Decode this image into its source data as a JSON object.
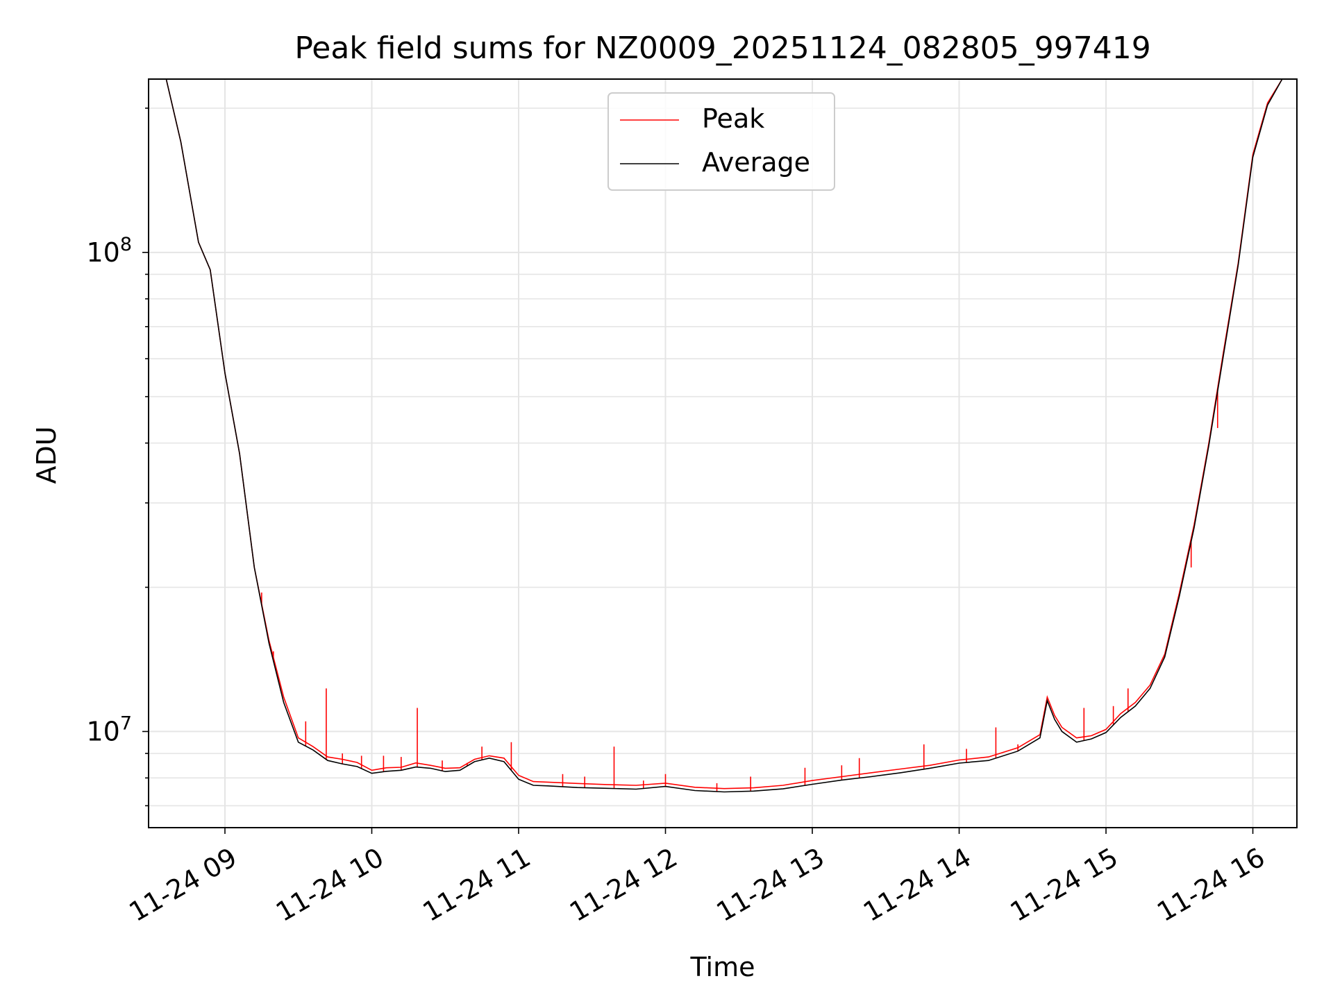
{
  "chart_data": {
    "type": "line",
    "title": "Peak field sums for NZ0009_20251124_082805_997419",
    "xlabel": "Time",
    "ylabel": "ADU",
    "yscale": "log",
    "ylim": [
      6300000,
      230000000
    ],
    "xlim_hours": [
      8.48,
      16.3
    ],
    "grid": true,
    "legend_position": "upper center",
    "x_tick_values": [
      9,
      10,
      11,
      12,
      13,
      14,
      15,
      16
    ],
    "x_tick_labels": [
      "11-24 09",
      "11-24 10",
      "11-24 11",
      "11-24 12",
      "11-24 13",
      "11-24 14",
      "11-24 15",
      "11-24 16"
    ],
    "y_major_ticks": [
      {
        "value": 10000000,
        "base": "10",
        "exp": "7"
      },
      {
        "value": 100000000,
        "base": "10",
        "exp": "8"
      }
    ],
    "series": [
      {
        "name": "Peak",
        "color": "#ff0000",
        "x": [
          8.48,
          8.6,
          8.7,
          8.82,
          8.9,
          9.0,
          9.1,
          9.2,
          9.3,
          9.4,
          9.5,
          9.6,
          9.7,
          9.8,
          9.9,
          10.0,
          10.1,
          10.2,
          10.3,
          10.4,
          10.5,
          10.6,
          10.7,
          10.8,
          10.9,
          11.0,
          11.1,
          11.2,
          11.4,
          11.6,
          11.8,
          12.0,
          12.2,
          12.4,
          12.6,
          12.8,
          13.0,
          13.2,
          13.4,
          13.6,
          13.8,
          14.0,
          14.2,
          14.4,
          14.55,
          14.6,
          14.65,
          14.7,
          14.8,
          14.9,
          15.0,
          15.1,
          15.2,
          15.3,
          15.4,
          15.5,
          15.6,
          15.7,
          15.8,
          15.9,
          16.0,
          16.1,
          16.2,
          16.3
        ],
        "y": [
          230000000,
          230000000,
          170000000,
          105000000,
          92000000,
          56000000,
          38000000,
          22000000,
          15500000,
          11800000,
          9700000,
          9300000,
          8850000,
          8750000,
          8620000,
          8300000,
          8400000,
          8420000,
          8600000,
          8500000,
          8380000,
          8400000,
          8750000,
          8900000,
          8800000,
          8100000,
          7860000,
          7840000,
          7790000,
          7750000,
          7720000,
          7800000,
          7650000,
          7600000,
          7630000,
          7720000,
          7900000,
          8050000,
          8200000,
          8350000,
          8500000,
          8720000,
          8850000,
          9250000,
          9850000,
          11800000,
          10800000,
          10200000,
          9700000,
          9800000,
          10100000,
          10900000,
          11500000,
          12500000,
          14500000,
          19500000,
          27000000,
          40000000,
          62000000,
          95000000,
          160000000,
          205000000,
          230000000,
          230000000
        ],
        "spikes": [
          {
            "x": 9.25,
            "y": 19500000
          },
          {
            "x": 9.33,
            "y": 14700000
          },
          {
            "x": 9.55,
            "y": 10500000
          },
          {
            "x": 9.69,
            "y": 12300000
          },
          {
            "x": 9.8,
            "y": 9000000
          },
          {
            "x": 9.93,
            "y": 8900000
          },
          {
            "x": 10.08,
            "y": 8900000
          },
          {
            "x": 10.2,
            "y": 8850000
          },
          {
            "x": 10.31,
            "y": 11200000
          },
          {
            "x": 10.48,
            "y": 8700000
          },
          {
            "x": 10.65,
            "y": 8600000
          },
          {
            "x": 10.75,
            "y": 9300000
          },
          {
            "x": 10.95,
            "y": 9500000
          },
          {
            "x": 11.3,
            "y": 8150000
          },
          {
            "x": 11.45,
            "y": 8050000
          },
          {
            "x": 11.65,
            "y": 9300000
          },
          {
            "x": 11.85,
            "y": 7900000
          },
          {
            "x": 12.0,
            "y": 8150000
          },
          {
            "x": 12.35,
            "y": 7800000
          },
          {
            "x": 12.58,
            "y": 8050000
          },
          {
            "x": 12.95,
            "y": 8400000
          },
          {
            "x": 13.2,
            "y": 8500000
          },
          {
            "x": 13.32,
            "y": 8800000
          },
          {
            "x": 13.76,
            "y": 9400000
          },
          {
            "x": 14.05,
            "y": 9200000
          },
          {
            "x": 14.25,
            "y": 10200000
          },
          {
            "x": 14.4,
            "y": 9400000
          },
          {
            "x": 14.85,
            "y": 11200000
          },
          {
            "x": 15.05,
            "y": 11300000
          },
          {
            "x": 15.15,
            "y": 12300000
          },
          {
            "x": 15.58,
            "y": 22000000
          },
          {
            "x": 15.76,
            "y": 43000000
          }
        ]
      },
      {
        "name": "Average",
        "color": "#000000",
        "x": [
          8.48,
          8.6,
          8.7,
          8.82,
          8.9,
          9.0,
          9.1,
          9.2,
          9.3,
          9.4,
          9.5,
          9.6,
          9.7,
          9.8,
          9.9,
          10.0,
          10.1,
          10.2,
          10.3,
          10.4,
          10.5,
          10.6,
          10.7,
          10.8,
          10.9,
          11.0,
          11.1,
          11.2,
          11.4,
          11.6,
          11.8,
          12.0,
          12.2,
          12.4,
          12.6,
          12.8,
          13.0,
          13.2,
          13.4,
          13.6,
          13.8,
          14.0,
          14.2,
          14.4,
          14.55,
          14.6,
          14.65,
          14.7,
          14.8,
          14.9,
          15.0,
          15.1,
          15.2,
          15.3,
          15.4,
          15.5,
          15.6,
          15.7,
          15.8,
          15.9,
          16.0,
          16.1,
          16.2,
          16.3
        ],
        "y": [
          230000000,
          230000000,
          170000000,
          105000000,
          92000000,
          56000000,
          38000000,
          22000000,
          15300000,
          11500000,
          9500000,
          9150000,
          8700000,
          8560000,
          8450000,
          8180000,
          8260000,
          8300000,
          8430000,
          8380000,
          8250000,
          8300000,
          8650000,
          8800000,
          8650000,
          7950000,
          7720000,
          7700000,
          7640000,
          7610000,
          7580000,
          7680000,
          7530000,
          7480000,
          7510000,
          7590000,
          7760000,
          7920000,
          8050000,
          8200000,
          8380000,
          8590000,
          8700000,
          9100000,
          9700000,
          11600000,
          10600000,
          10000000,
          9500000,
          9650000,
          9950000,
          10700000,
          11300000,
          12300000,
          14300000,
          19200000,
          26600000,
          39500000,
          61000000,
          94000000,
          158000000,
          203000000,
          230000000,
          230000000
        ]
      }
    ]
  }
}
